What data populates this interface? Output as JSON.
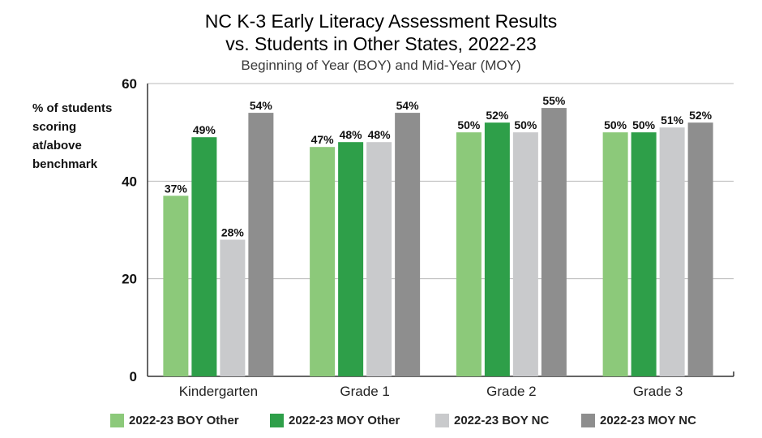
{
  "chart_data": {
    "type": "bar",
    "title_line1": "NC K-3 Early Literacy Assessment Results",
    "title_line2": "vs. Students in Other States, 2022-23",
    "subtitle": "Beginning of Year (BOY) and Mid-Year (MOY)",
    "ylabel_lines": [
      "% of students",
      "scoring",
      "at/above",
      "benchmark"
    ],
    "xlabel": "",
    "ylim": [
      0,
      60
    ],
    "yticks": [
      0,
      20,
      40,
      60
    ],
    "grid": true,
    "legend_position": "bottom",
    "categories": [
      "Kindergarten",
      "Grade 1",
      "Grade 2",
      "Grade 3"
    ],
    "series": [
      {
        "name": "2022-23 BOY Other",
        "color": "#8cc97a",
        "values": [
          37,
          47,
          50,
          50
        ],
        "labels": [
          "37%",
          "47%",
          "50%",
          "50%"
        ]
      },
      {
        "name": "2022-23 MOY Other",
        "color": "#2e9f49",
        "values": [
          49,
          48,
          52,
          50
        ],
        "labels": [
          "49%",
          "48%",
          "52%",
          "50%"
        ]
      },
      {
        "name": "2022-23 BOY NC",
        "color": "#c9cacc",
        "values": [
          28,
          48,
          50,
          51
        ],
        "labels": [
          "28%",
          "48%",
          "50%",
          "51%"
        ]
      },
      {
        "name": "2022-23 MOY NC",
        "color": "#8e8e8e",
        "values": [
          54,
          54,
          55,
          52
        ],
        "labels": [
          "54%",
          "54%",
          "55%",
          "52%"
        ]
      }
    ]
  }
}
